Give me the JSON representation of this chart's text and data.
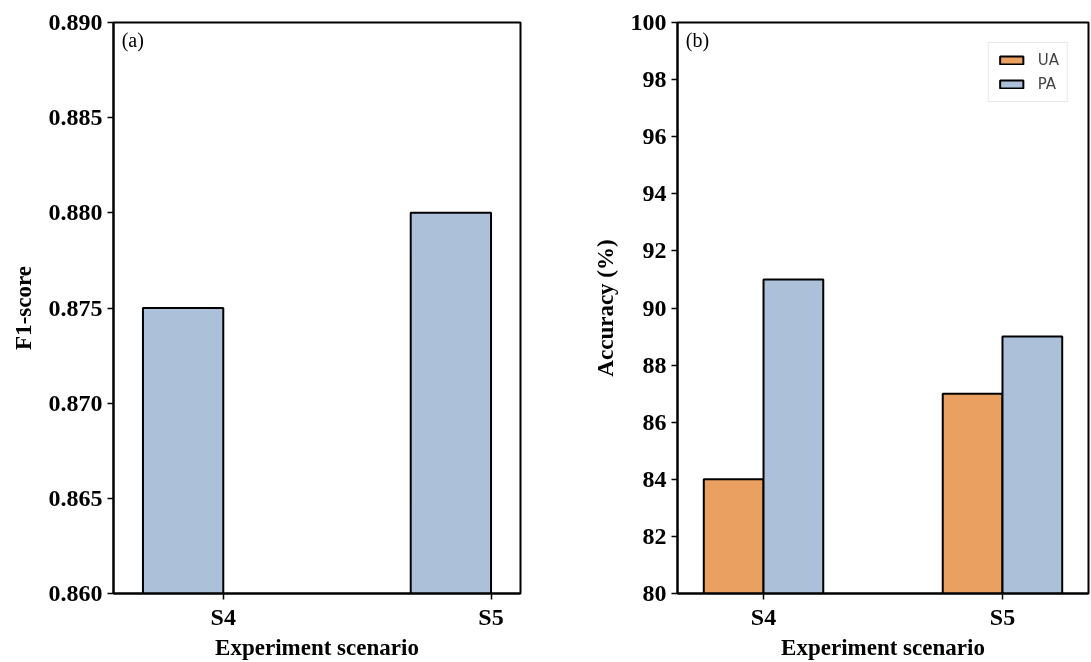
{
  "chart_data": [
    {
      "type": "bar",
      "categories": [
        "S4",
        "S5"
      ],
      "series": [
        {
          "color": "#adc0da",
          "values": [
            0.875,
            0.88
          ]
        }
      ],
      "xlabel": "Experiment scenario",
      "ylabel": "F1-score",
      "ylim": [
        0.86,
        0.89
      ],
      "yticks": [
        {
          "value": 0.86,
          "label": "0.860"
        },
        {
          "value": 0.865,
          "label": "0.865"
        },
        {
          "value": 0.87,
          "label": "0.870"
        },
        {
          "value": 0.875,
          "label": "0.875"
        },
        {
          "value": 0.88,
          "label": "0.880"
        },
        {
          "value": 0.885,
          "label": "0.885"
        },
        {
          "value": 0.89,
          "label": "0.890"
        }
      ],
      "annotations": [
        "(a)"
      ]
    },
    {
      "type": "bar",
      "categories": [
        "S4",
        "S5"
      ],
      "series": [
        {
          "name": "UA",
          "color": "#e9a060",
          "values": [
            84,
            87
          ]
        },
        {
          "name": "PA",
          "color": "#adc0da",
          "values": [
            91,
            89
          ]
        }
      ],
      "xlabel": "Experiment scenario",
      "ylabel": "Accuracy (%)",
      "ylim": [
        80,
        100
      ],
      "yticks": [
        80,
        82,
        84,
        86,
        88,
        90,
        92,
        94,
        96,
        98,
        100
      ],
      "legend": "top right",
      "annotations": [
        "(b)"
      ]
    }
  ]
}
